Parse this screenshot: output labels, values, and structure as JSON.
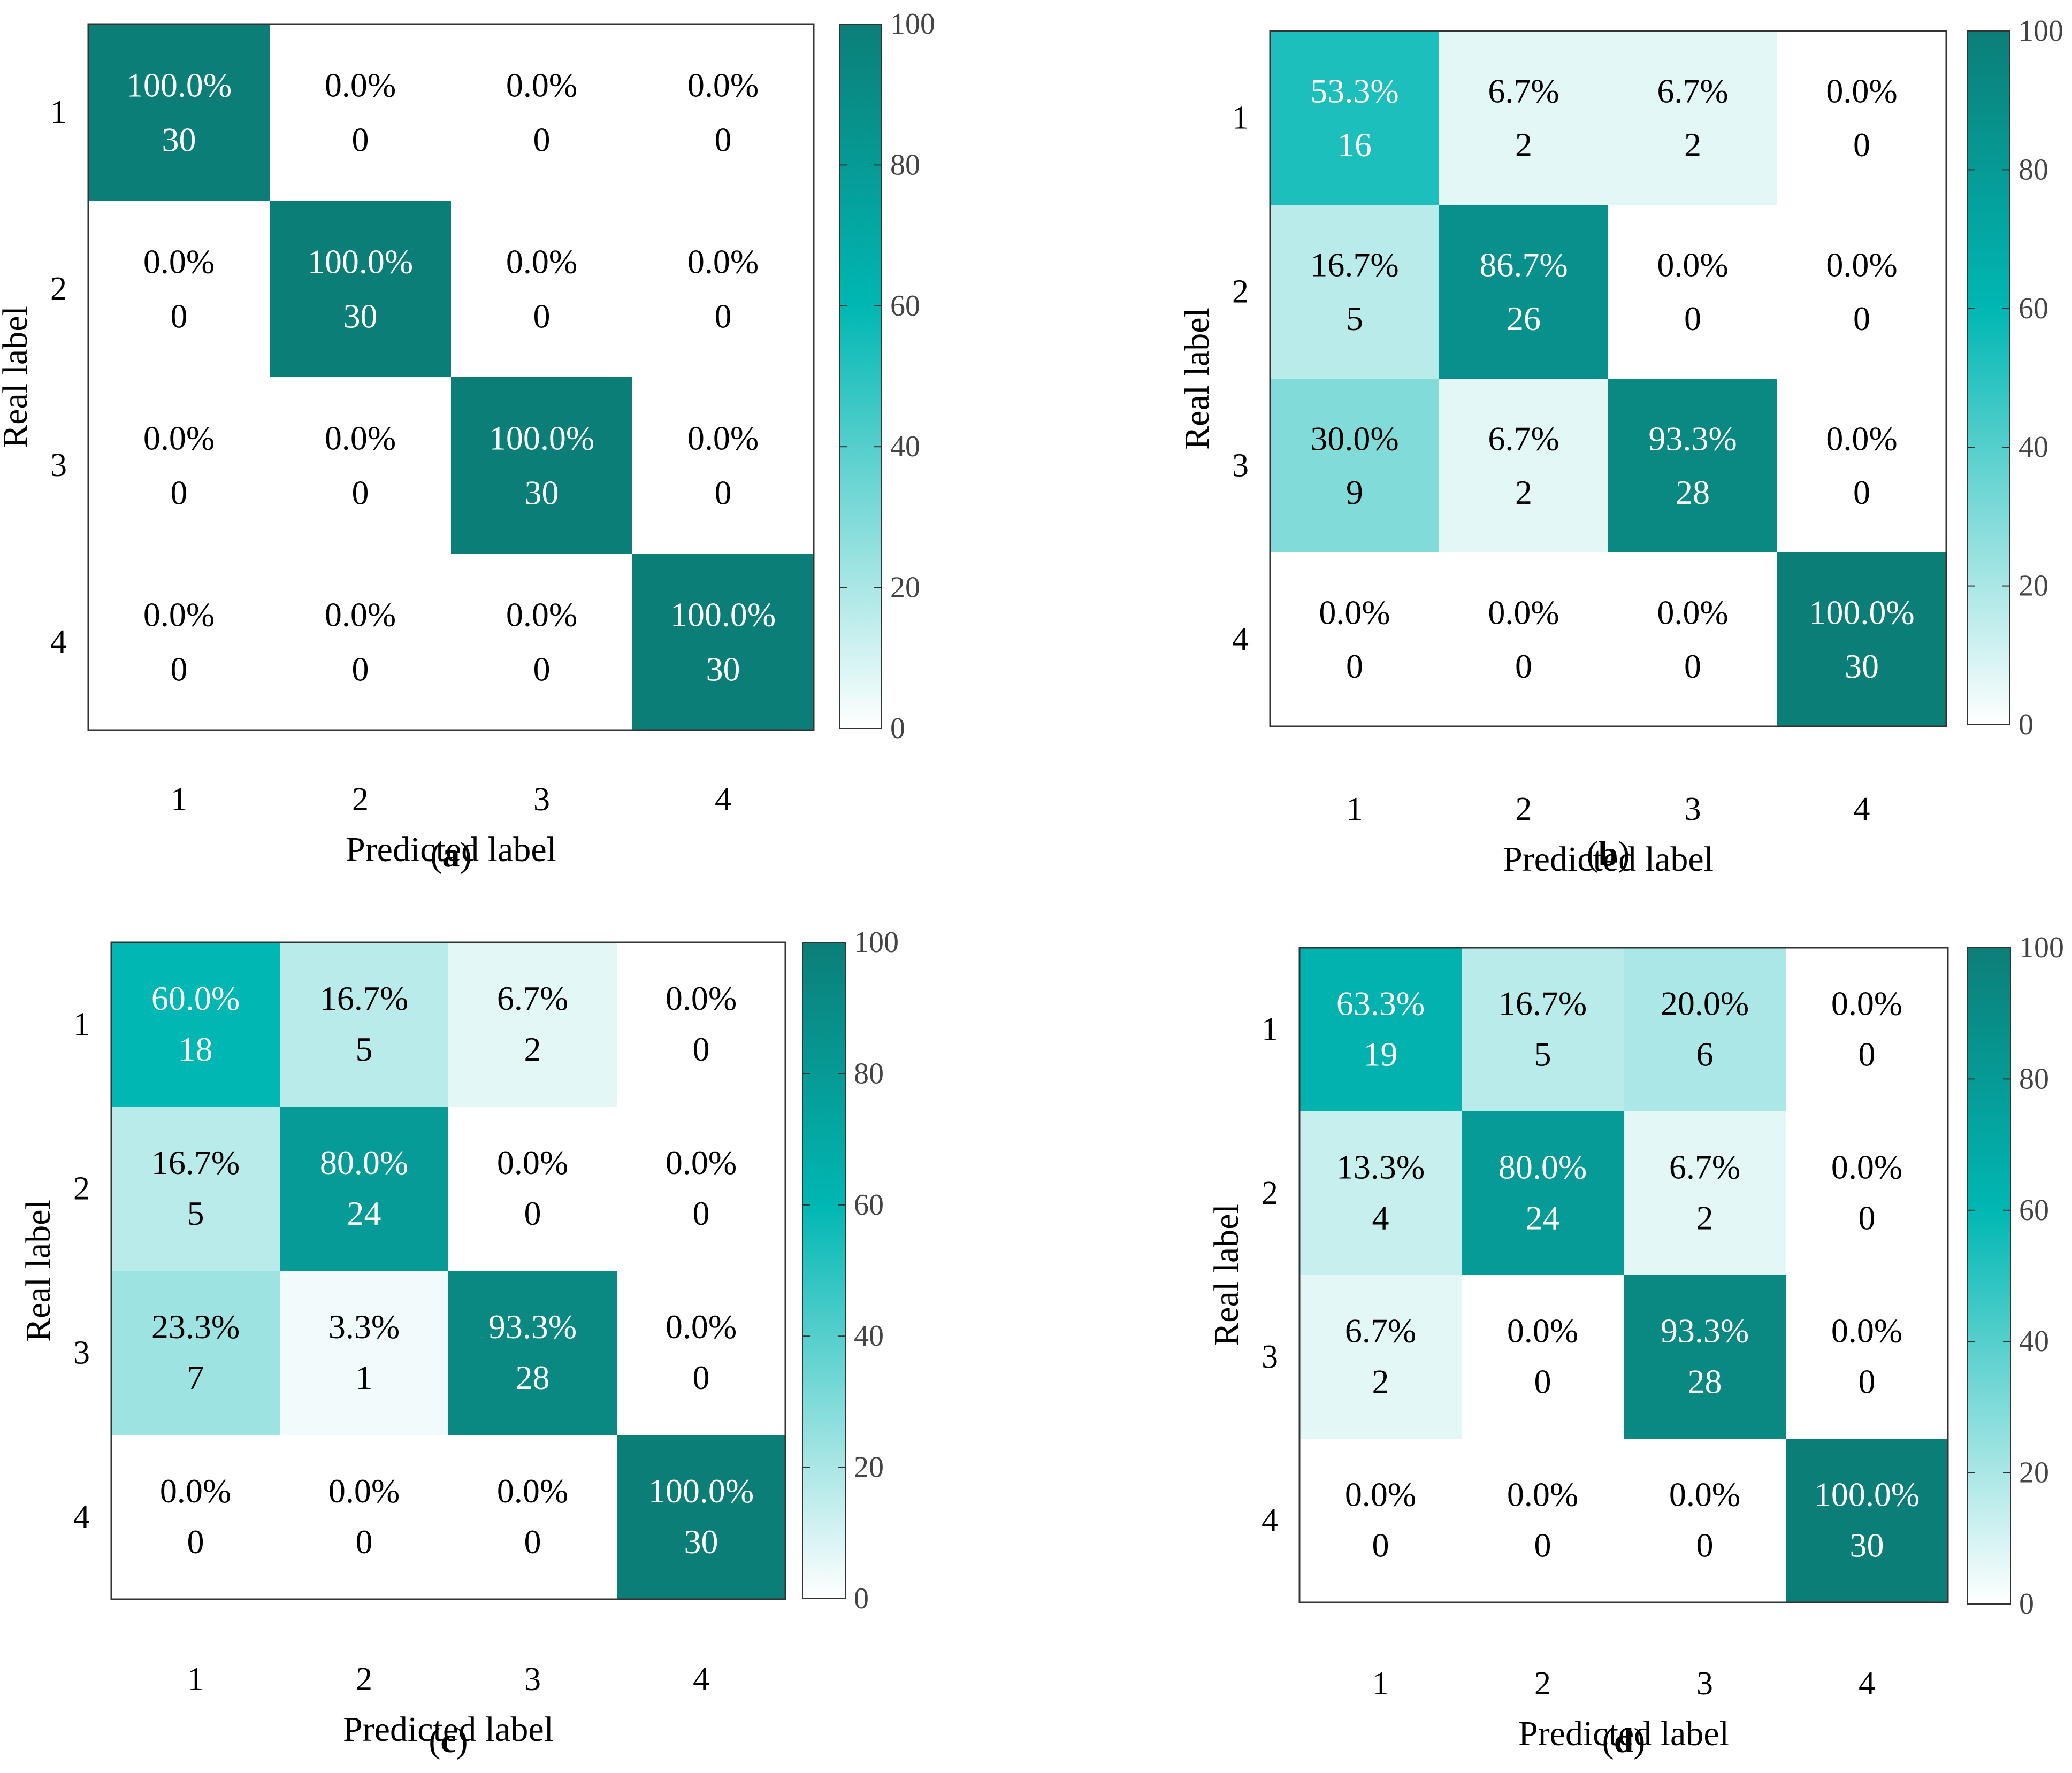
{
  "figure": {
    "panel_letters": [
      "a",
      "b",
      "c",
      "d"
    ]
  },
  "colors": {
    "low": "#ffffff",
    "mid": "#00b7b3",
    "high": "#0c7e78",
    "frame": "#333333",
    "dark_text": "#000000",
    "light_text": "#ffffff"
  },
  "chart_data": [
    {
      "type": "heatmap",
      "panel": "a",
      "xlabel": "Predicted label",
      "ylabel": "Real label",
      "x_categories": [
        "1",
        "2",
        "3",
        "4"
      ],
      "y_categories": [
        "1",
        "2",
        "3",
        "4"
      ],
      "percent": [
        [
          100.0,
          0.0,
          0.0,
          0.0
        ],
        [
          0.0,
          100.0,
          0.0,
          0.0
        ],
        [
          0.0,
          0.0,
          100.0,
          0.0
        ],
        [
          0.0,
          0.0,
          0.0,
          100.0
        ]
      ],
      "percent_labels": [
        [
          "100.0%",
          "0.0%",
          "0.0%",
          "0.0%"
        ],
        [
          "0.0%",
          "100.0%",
          "0.0%",
          "0.0%"
        ],
        [
          "0.0%",
          "0.0%",
          "100.0%",
          "0.0%"
        ],
        [
          "0.0%",
          "0.0%",
          "0.0%",
          "100.0%"
        ]
      ],
      "counts": [
        [
          30,
          0,
          0,
          0
        ],
        [
          0,
          30,
          0,
          0
        ],
        [
          0,
          0,
          30,
          0
        ],
        [
          0,
          0,
          0,
          30
        ]
      ],
      "colorbar": {
        "range": [
          0,
          100
        ],
        "ticks": [
          0,
          20,
          40,
          60,
          80,
          100
        ]
      }
    },
    {
      "type": "heatmap",
      "panel": "b",
      "xlabel": "Predicted label",
      "ylabel": "Real label",
      "x_categories": [
        "1",
        "2",
        "3",
        "4"
      ],
      "y_categories": [
        "1",
        "2",
        "3",
        "4"
      ],
      "percent": [
        [
          53.3,
          6.7,
          6.7,
          0.0
        ],
        [
          16.7,
          86.7,
          0.0,
          0.0
        ],
        [
          30.0,
          6.7,
          93.3,
          0.0
        ],
        [
          0.0,
          0.0,
          0.0,
          100.0
        ]
      ],
      "percent_labels": [
        [
          "53.3%",
          "6.7%",
          "6.7%",
          "0.0%"
        ],
        [
          "16.7%",
          "86.7%",
          "0.0%",
          "0.0%"
        ],
        [
          "30.0%",
          "6.7%",
          "93.3%",
          "0.0%"
        ],
        [
          "0.0%",
          "0.0%",
          "0.0%",
          "100.0%"
        ]
      ],
      "counts": [
        [
          16,
          2,
          2,
          0
        ],
        [
          5,
          26,
          0,
          0
        ],
        [
          9,
          2,
          28,
          0
        ],
        [
          0,
          0,
          0,
          30
        ]
      ],
      "colorbar": {
        "range": [
          0,
          100
        ],
        "ticks": [
          0,
          20,
          40,
          60,
          80,
          100
        ]
      }
    },
    {
      "type": "heatmap",
      "panel": "c",
      "xlabel": "Predicted label",
      "ylabel": "Real label",
      "x_categories": [
        "1",
        "2",
        "3",
        "4"
      ],
      "y_categories": [
        "1",
        "2",
        "3",
        "4"
      ],
      "percent": [
        [
          60.0,
          16.7,
          6.7,
          0.0
        ],
        [
          16.7,
          80.0,
          0.0,
          0.0
        ],
        [
          23.3,
          3.3,
          93.3,
          0.0
        ],
        [
          0.0,
          0.0,
          0.0,
          100.0
        ]
      ],
      "percent_labels": [
        [
          "60.0%",
          "16.7%",
          "6.7%",
          "0.0%"
        ],
        [
          "16.7%",
          "80.0%",
          "0.0%",
          "0.0%"
        ],
        [
          "23.3%",
          "3.3%",
          "93.3%",
          "0.0%"
        ],
        [
          "0.0%",
          "0.0%",
          "0.0%",
          "100.0%"
        ]
      ],
      "counts": [
        [
          18,
          5,
          2,
          0
        ],
        [
          5,
          24,
          0,
          0
        ],
        [
          7,
          1,
          28,
          0
        ],
        [
          0,
          0,
          0,
          30
        ]
      ],
      "colorbar": {
        "range": [
          0,
          100
        ],
        "ticks": [
          0,
          20,
          40,
          60,
          80,
          100
        ]
      }
    },
    {
      "type": "heatmap",
      "panel": "d",
      "xlabel": "Predicted label",
      "ylabel": "Real label",
      "x_categories": [
        "1",
        "2",
        "3",
        "4"
      ],
      "y_categories": [
        "1",
        "2",
        "3",
        "4"
      ],
      "percent": [
        [
          63.3,
          16.7,
          20.0,
          0.0
        ],
        [
          13.3,
          80.0,
          6.7,
          0.0
        ],
        [
          6.7,
          0.0,
          93.3,
          0.0
        ],
        [
          0.0,
          0.0,
          0.0,
          100.0
        ]
      ],
      "percent_labels": [
        [
          "63.3%",
          "16.7%",
          "20.0%",
          "0.0%"
        ],
        [
          "13.3%",
          "80.0%",
          "6.7%",
          "0.0%"
        ],
        [
          "6.7%",
          "0.0%",
          "93.3%",
          "0.0%"
        ],
        [
          "0.0%",
          "0.0%",
          "0.0%",
          "100.0%"
        ]
      ],
      "counts": [
        [
          19,
          5,
          6,
          0
        ],
        [
          4,
          24,
          2,
          0
        ],
        [
          2,
          0,
          28,
          0
        ],
        [
          0,
          0,
          0,
          30
        ]
      ],
      "colorbar": {
        "range": [
          0,
          100
        ],
        "ticks": [
          0,
          20,
          40,
          60,
          80,
          100
        ]
      }
    }
  ]
}
